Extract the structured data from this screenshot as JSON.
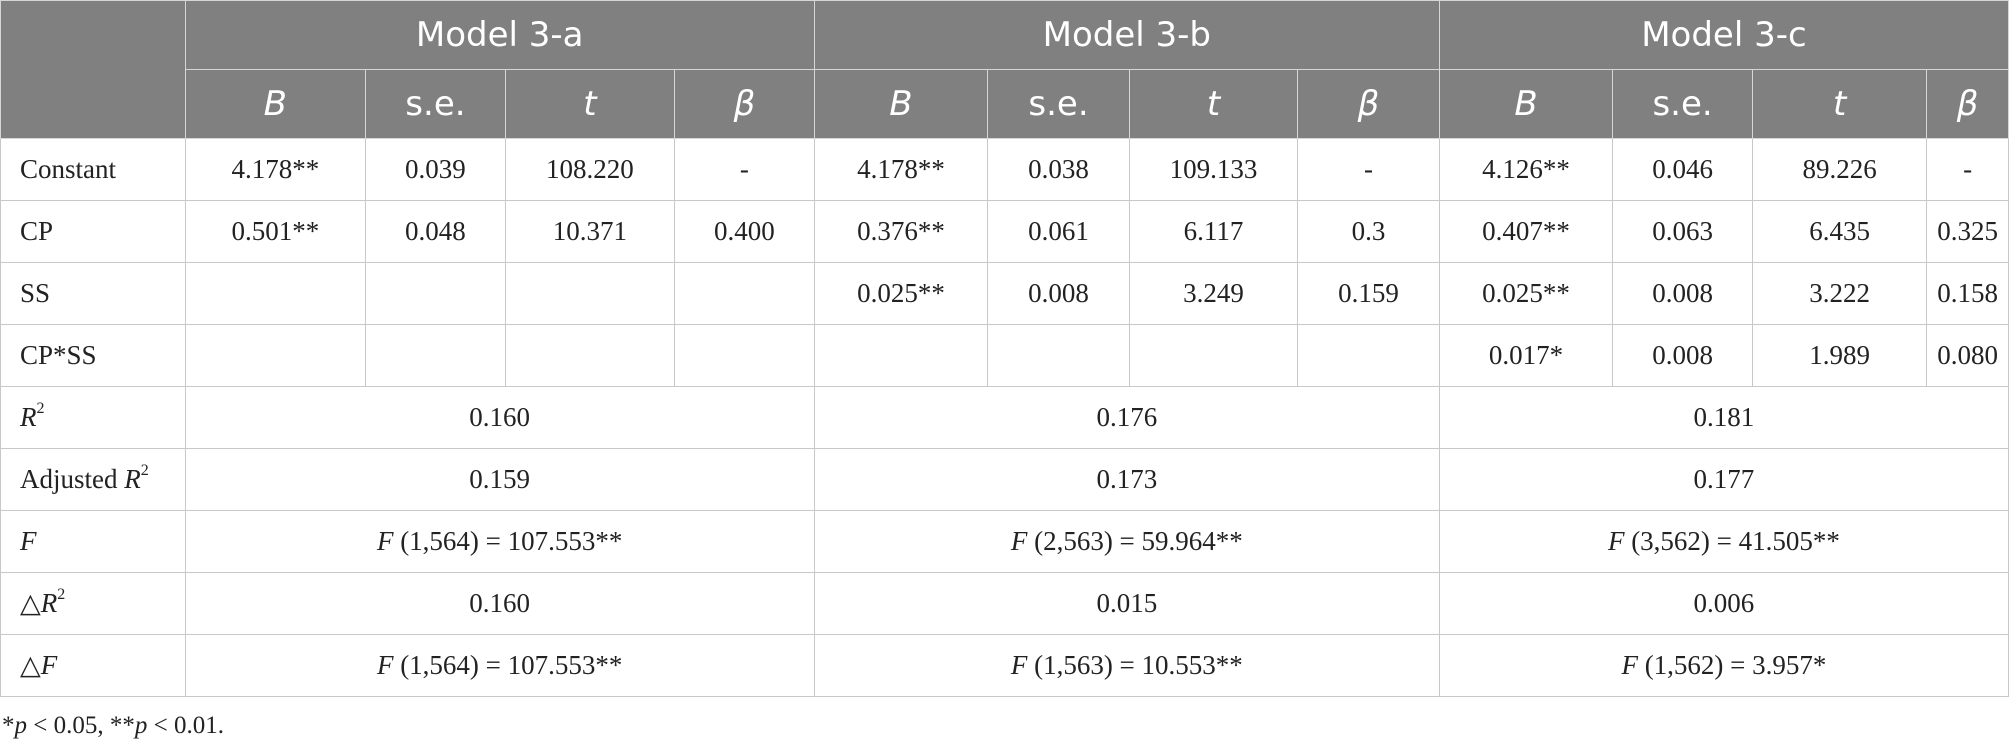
{
  "models": [
    "Model 3-a",
    "Model 3-b",
    "Model 3-c"
  ],
  "columns": [
    "B",
    "s.e.",
    "t",
    "β"
  ],
  "rows": [
    {
      "label": "Constant",
      "cells": [
        "4.178**",
        "0.039",
        "108.220",
        "-",
        "4.178**",
        "0.038",
        "109.133",
        "-",
        "4.126**",
        "0.046",
        "89.226",
        "-"
      ]
    },
    {
      "label": "CP",
      "cells": [
        "0.501**",
        "0.048",
        "10.371",
        "0.400",
        "0.376**",
        "0.061",
        "6.117",
        "0.3",
        "0.407**",
        "0.063",
        "6.435",
        "0.325"
      ]
    },
    {
      "label": "SS",
      "cells": [
        "",
        "",
        "",
        "",
        "0.025**",
        "0.008",
        "3.249",
        "0.159",
        "0.025**",
        "0.008",
        "3.222",
        "0.158"
      ]
    },
    {
      "label": "CP*SS",
      "cells": [
        "",
        "",
        "",
        "",
        "",
        "",
        "",
        "",
        "0.017*",
        "0.008",
        "1.989",
        "0.080"
      ]
    }
  ],
  "summary": {
    "r2": {
      "label": "R",
      "sup": "2",
      "values": [
        "0.160",
        "0.176",
        "0.181"
      ]
    },
    "adj_r2": {
      "label_prefix": "Adjusted ",
      "label": "R",
      "sup": "2",
      "values": [
        "0.159",
        "0.173",
        "0.177"
      ]
    },
    "f": {
      "label": "F",
      "values": [
        {
          "f": "F",
          "df": " (1,564) = 107.553**"
        },
        {
          "f": "F",
          "df": " (2,563) = 59.964**"
        },
        {
          "f": "F",
          "df": " (3,562) = 41.505**"
        }
      ]
    },
    "delta_r2": {
      "symbol": "△",
      "label": "R",
      "sup": "2",
      "values": [
        "0.160",
        "0.015",
        "0.006"
      ]
    },
    "delta_f": {
      "symbol": "△",
      "label": "F",
      "values": [
        {
          "f": "F",
          "df": " (1,564) = 107.553**"
        },
        {
          "f": "F",
          "df": " (1,563) = 10.553**"
        },
        {
          "f": "F",
          "df": " (1,562) = 3.957*"
        }
      ]
    }
  },
  "footnote": {
    "star1": "*",
    "p1": "p",
    "t1": " < 0.05, **",
    "p2": "p",
    "t2": " < 0.01."
  }
}
